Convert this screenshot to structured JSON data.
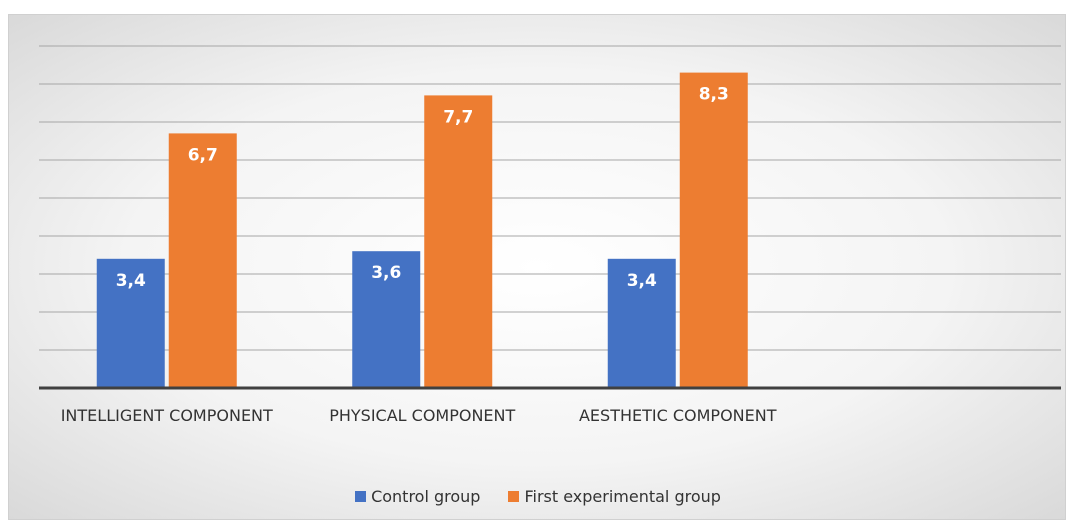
{
  "chart_data": {
    "type": "bar",
    "categories": [
      "INTELLIGENT COMPONENT",
      "PHYSICAL COMPONENT",
      "AESTHETIC COMPONENT",
      null
    ],
    "series": [
      {
        "name": "Control group",
        "color": "#4472c4",
        "values": [
          3.4,
          3.6,
          3.4,
          null
        ],
        "value_labels": [
          "3,4",
          "3,6",
          "3,4",
          null
        ]
      },
      {
        "name": "First experimental group",
        "color": "#ed7d31",
        "values": [
          6.7,
          7.7,
          8.3,
          null
        ],
        "value_labels": [
          "6,7",
          "7,7",
          "8,3",
          null
        ]
      }
    ],
    "ylim": [
      0,
      9
    ],
    "yticks": [
      0,
      1,
      2,
      3,
      4,
      5,
      6,
      7,
      8,
      9
    ],
    "grid": true,
    "legend": "bottom"
  }
}
